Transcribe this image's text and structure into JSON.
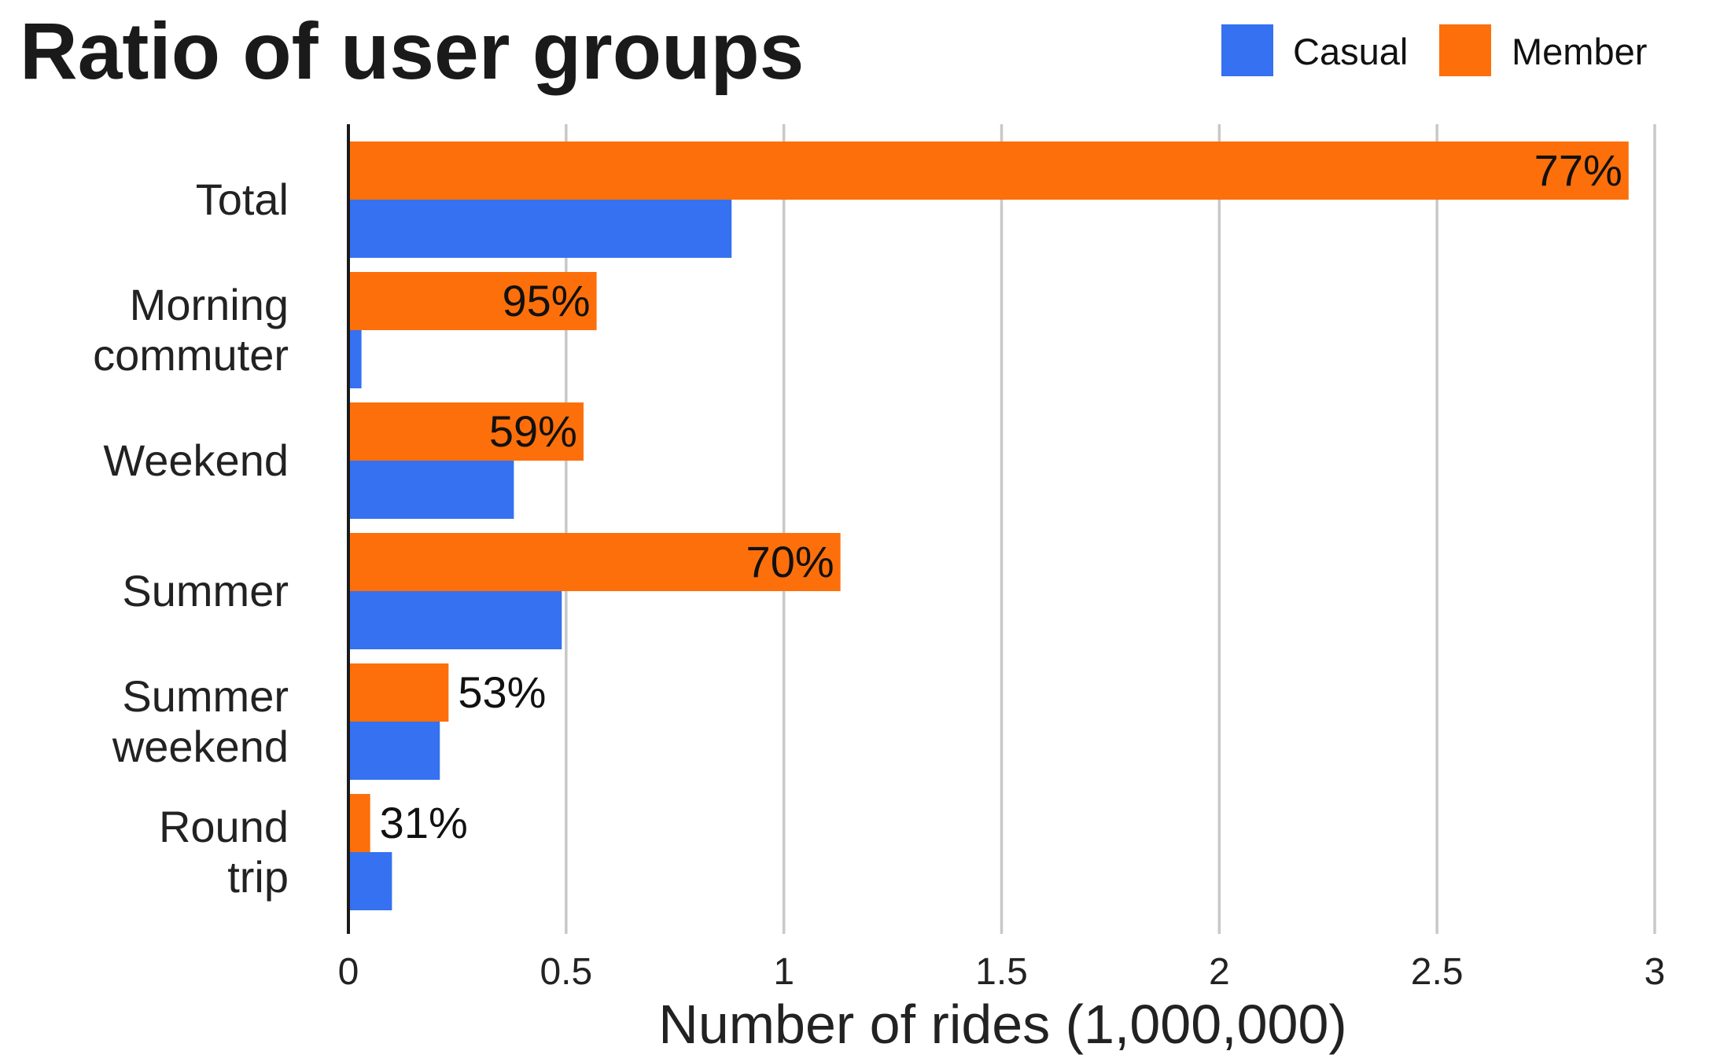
{
  "chart_data": {
    "type": "bar",
    "orientation": "horizontal",
    "title": "Ratio of user groups",
    "xlabel": "Number of rides (1,000,000)",
    "ylabel": "",
    "xlim": [
      0,
      3
    ],
    "xticks": [
      0,
      0.5,
      1,
      1.5,
      2,
      2.5,
      3
    ],
    "xtick_labels": [
      "0",
      "0.5",
      "1",
      "1.5",
      "2",
      "2.5",
      "3"
    ],
    "grid": "vertical",
    "legend_position": "top-right",
    "categories": [
      [
        "Total"
      ],
      [
        "Morning",
        "commuter"
      ],
      [
        "Weekend"
      ],
      [
        "Summer"
      ],
      [
        "Summer",
        "weekend"
      ],
      [
        "Round",
        "trip"
      ]
    ],
    "series": [
      {
        "name": "Casual",
        "color": "#3571F0",
        "values": [
          0.88,
          0.03,
          0.38,
          0.49,
          0.21,
          0.1
        ]
      },
      {
        "name": "Member",
        "color": "#FD6F0A",
        "values": [
          2.94,
          0.57,
          0.54,
          1.13,
          0.23,
          0.05
        ],
        "data_labels": [
          "77%",
          "95%",
          "59%",
          "70%",
          "53%",
          "31%"
        ]
      }
    ]
  }
}
